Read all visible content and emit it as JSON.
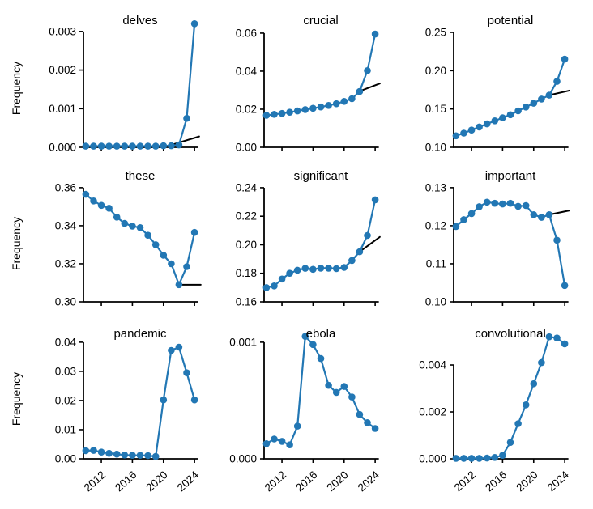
{
  "figure": {
    "ylabel": "Frequency",
    "background": "#ffffff",
    "accent_color": "#2277b4",
    "trend_color": "#000000"
  },
  "x_axis": {
    "years": [
      2010,
      2011,
      2012,
      2013,
      2014,
      2015,
      2016,
      2017,
      2018,
      2019,
      2020,
      2021,
      2022,
      2023,
      2024
    ],
    "ticks": [
      2012,
      2016,
      2020,
      2024
    ],
    "tick_labels": [
      "2012",
      "2016",
      "2020",
      "2024"
    ]
  },
  "chart_data": [
    {
      "type": "line",
      "title": "delves",
      "ylim": [
        0,
        0.00306
      ],
      "yticks": [
        0,
        0.001,
        0.002,
        0.003
      ],
      "ytick_labels": [
        "0.000",
        "0.001",
        "0.002",
        "0.003"
      ],
      "values": [
        3e-05,
        3e-05,
        3e-05,
        3e-05,
        3e-05,
        3e-05,
        3e-05,
        3e-05,
        3e-05,
        3e-05,
        4e-05,
        4e-05,
        6e-05,
        0.00075,
        0.0032
      ],
      "trend": {
        "x": [
          2021.3,
          2024.6
        ],
        "y": [
          8e-05,
          0.00028
        ]
      }
    },
    {
      "type": "line",
      "title": "crucial",
      "ylim": [
        0,
        0.0621
      ],
      "yticks": [
        0,
        0.02,
        0.04,
        0.06
      ],
      "ytick_labels": [
        "0.00",
        "0.02",
        "0.04",
        "0.06"
      ],
      "values": [
        0.0168,
        0.0173,
        0.0178,
        0.0184,
        0.0191,
        0.0198,
        0.0205,
        0.0212,
        0.022,
        0.0229,
        0.0241,
        0.0255,
        0.0293,
        0.0403,
        0.0595
      ],
      "trend": {
        "x": [
          2022,
          2024.6
        ],
        "y": [
          0.0295,
          0.0335
        ]
      }
    },
    {
      "type": "line",
      "title": "potential",
      "ylim": [
        0.1,
        0.2542
      ],
      "yticks": [
        0.1,
        0.15,
        0.2,
        0.25
      ],
      "ytick_labels": [
        "0.10",
        "0.15",
        "0.20",
        "0.25"
      ],
      "values": [
        0.115,
        0.1185,
        0.1225,
        0.1265,
        0.1305,
        0.1345,
        0.1385,
        0.1425,
        0.1475,
        0.1525,
        0.1575,
        0.163,
        0.168,
        0.186,
        0.215
      ],
      "trend": {
        "x": [
          2022,
          2024.6
        ],
        "y": [
          0.168,
          0.174
        ]
      }
    },
    {
      "type": "line",
      "title": "these",
      "ylim": [
        0.3,
        0.3608
      ],
      "yticks": [
        0.3,
        0.32,
        0.34,
        0.36
      ],
      "ytick_labels": [
        "0.30",
        "0.32",
        "0.34",
        "0.36"
      ],
      "values": [
        0.3565,
        0.353,
        0.3507,
        0.3492,
        0.3445,
        0.3412,
        0.3398,
        0.339,
        0.335,
        0.33,
        0.3245,
        0.32,
        0.309,
        0.3185,
        0.3365
      ],
      "trend": {
        "x": [
          2022.45,
          2024.8
        ],
        "y": [
          0.309,
          0.309
        ]
      }
    },
    {
      "type": "line",
      "title": "significant",
      "ylim": [
        0.16,
        0.2411
      ],
      "yticks": [
        0.16,
        0.18,
        0.2,
        0.22,
        0.24
      ],
      "ytick_labels": [
        "0.16",
        "0.18",
        "0.20",
        "0.22",
        "0.24"
      ],
      "values": [
        0.17,
        0.1712,
        0.176,
        0.18,
        0.1822,
        0.1835,
        0.1828,
        0.1836,
        0.1836,
        0.1833,
        0.1841,
        0.189,
        0.1951,
        0.2065,
        0.2315
      ],
      "trend": {
        "x": [
          2022,
          2024.6
        ],
        "y": [
          0.1951,
          0.2055
        ]
      }
    },
    {
      "type": "line",
      "title": "important",
      "ylim": [
        0.1,
        0.1304
      ],
      "yticks": [
        0.1,
        0.11,
        0.12,
        0.13
      ],
      "ytick_labels": [
        "0.10",
        "0.11",
        "0.12",
        "0.13"
      ],
      "values": [
        0.1198,
        0.1216,
        0.1232,
        0.125,
        0.1262,
        0.1259,
        0.1257,
        0.1259,
        0.1251,
        0.1253,
        0.1229,
        0.1222,
        0.1229,
        0.1162,
        0.1043
      ],
      "trend": {
        "x": [
          2022,
          2024.6
        ],
        "y": [
          0.1229,
          0.124
        ]
      }
    },
    {
      "type": "line",
      "title": "pandemic",
      "ylim": [
        0,
        0.0408
      ],
      "yticks": [
        0,
        0.01,
        0.02,
        0.03,
        0.04
      ],
      "ytick_labels": [
        "0.00",
        "0.01",
        "0.02",
        "0.03",
        "0.04"
      ],
      "values": [
        0.0028,
        0.0029,
        0.0023,
        0.0019,
        0.0016,
        0.0013,
        0.0012,
        0.0012,
        0.0011,
        0.0008,
        0.0202,
        0.0372,
        0.0383,
        0.0295,
        0.0202
      ],
      "trend": null
    },
    {
      "type": "line",
      "title": "ebola",
      "ylim": [
        0,
        0.00102
      ],
      "yticks": [
        0,
        0.001
      ],
      "ytick_labels": [
        "0.000",
        "0.001"
      ],
      "values": [
        0.00013,
        0.00017,
        0.00015,
        0.00012,
        0.00028,
        0.00105,
        0.00098,
        0.00086,
        0.00063,
        0.00057,
        0.00062,
        0.00053,
        0.00038,
        0.00031,
        0.00026
      ],
      "trend": null
    },
    {
      "type": "line",
      "title": "convolutional",
      "ylim": [
        0,
        0.00507
      ],
      "yticks": [
        0,
        0.002,
        0.004
      ],
      "ytick_labels": [
        "0.000",
        "0.002",
        "0.004"
      ],
      "values": [
        2e-05,
        2e-05,
        2e-05,
        2e-05,
        3e-05,
        6e-05,
        0.00015,
        0.0007,
        0.0015,
        0.0023,
        0.0032,
        0.0041,
        0.0052,
        0.00515,
        0.0049
      ],
      "trend": null
    }
  ]
}
